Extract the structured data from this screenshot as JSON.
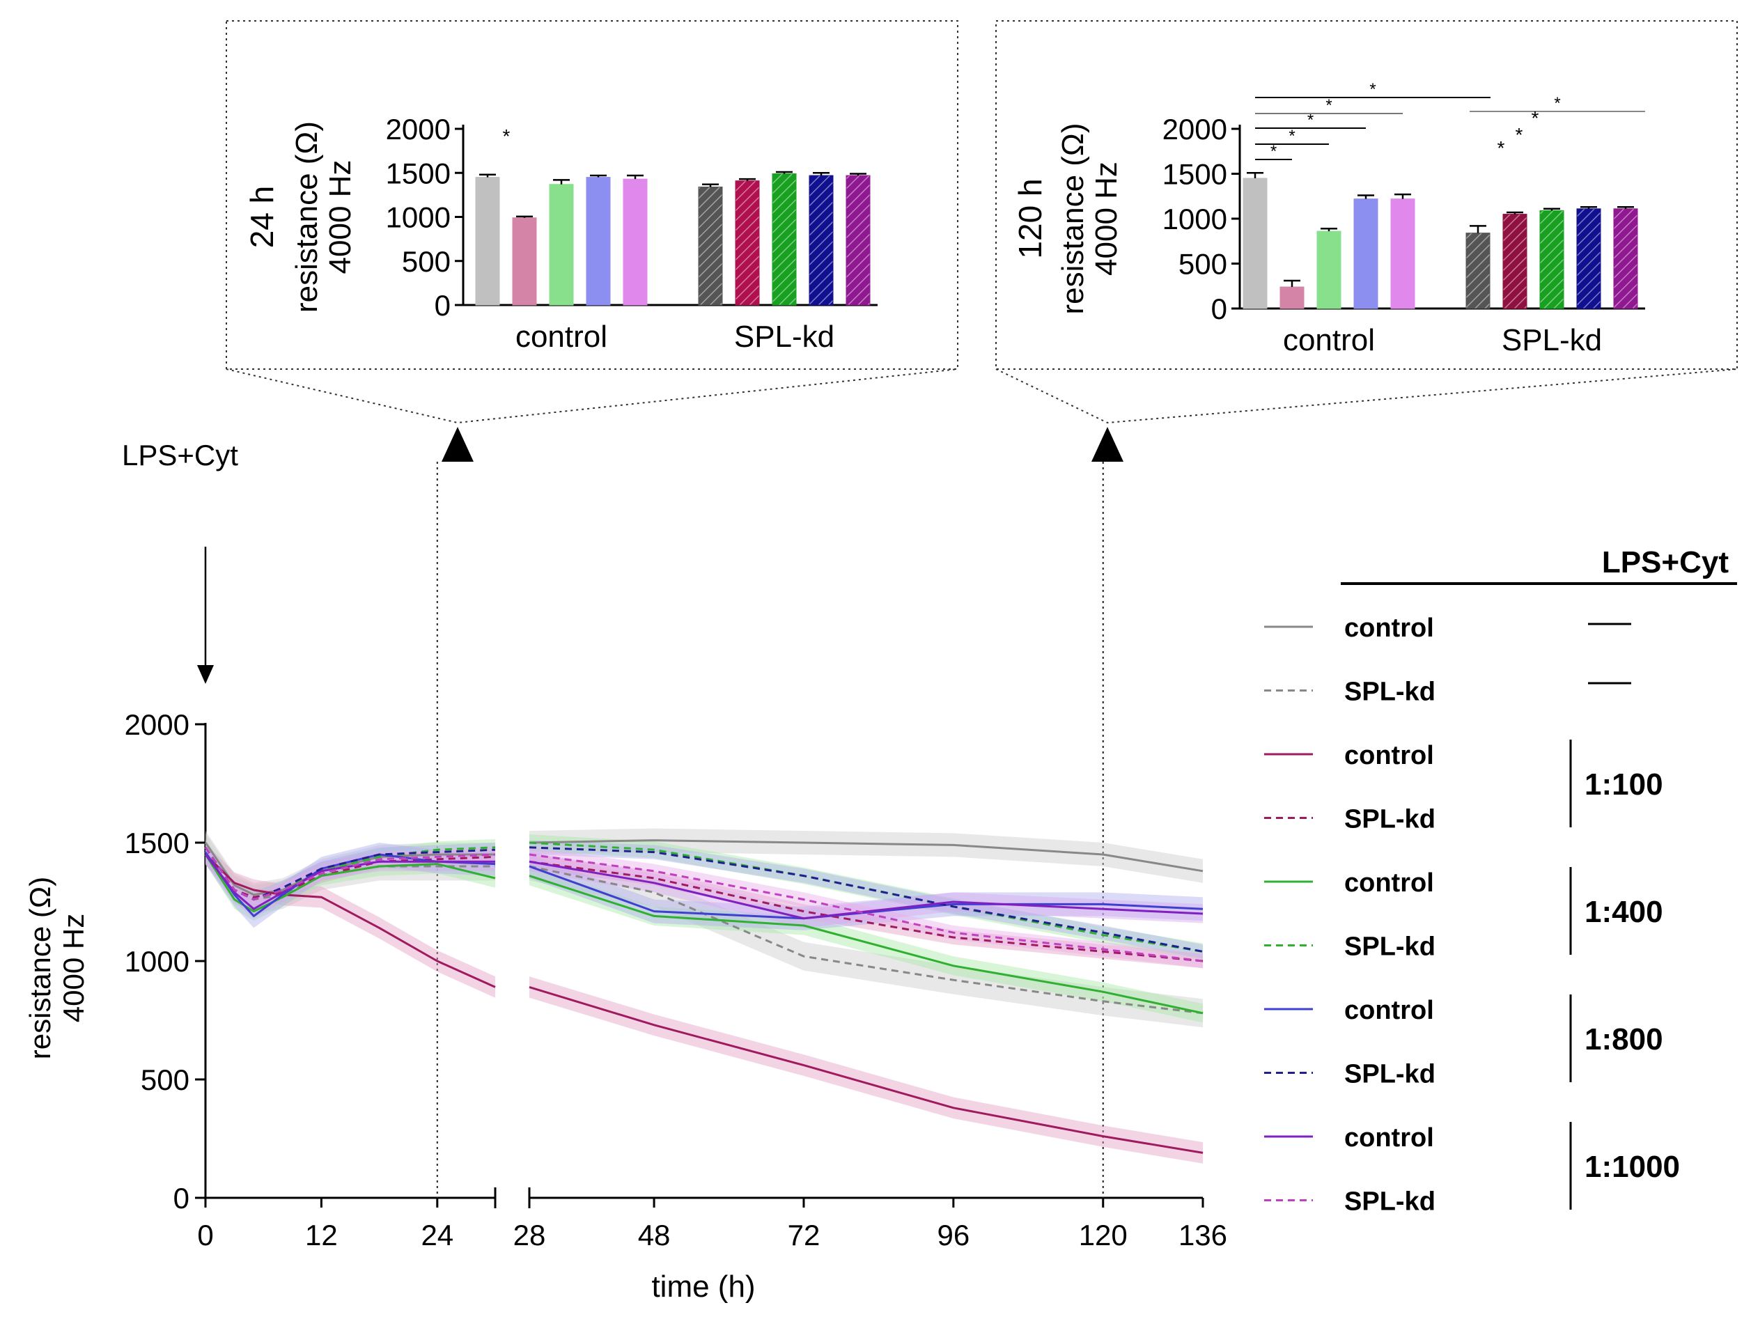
{
  "chart_data": [
    {
      "type": "bar",
      "title": "24 h",
      "ylabel": [
        "resistance (Ω)",
        "4000 Hz"
      ],
      "ylim": [
        0,
        2000
      ],
      "yticks": [
        "0",
        "500",
        "1000",
        "1500",
        "2000"
      ],
      "groups": [
        "control",
        "SPL-kd"
      ],
      "series": [
        {
          "name": "control",
          "group": "control",
          "color": "#c0c0c0",
          "hatched": false,
          "value": 1450,
          "error": 30
        },
        {
          "name": "1:100",
          "group": "control",
          "color": "#d484a6",
          "hatched": false,
          "value": 990,
          "error": 15
        },
        {
          "name": "1:400",
          "group": "control",
          "color": "#88e08c",
          "hatched": false,
          "value": 1370,
          "error": 50
        },
        {
          "name": "1:800",
          "group": "control",
          "color": "#8c8ef0",
          "hatched": false,
          "value": 1450,
          "error": 20
        },
        {
          "name": "1:1000",
          "group": "control",
          "color": "#e088ec",
          "hatched": false,
          "value": 1430,
          "error": 40
        },
        {
          "name": "control",
          "group": "SPL-kd",
          "color": "#555555",
          "hatched": true,
          "value": 1340,
          "error": 30
        },
        {
          "name": "1:100",
          "group": "SPL-kd",
          "color": "#b01050",
          "hatched": true,
          "value": 1410,
          "error": 20
        },
        {
          "name": "1:400",
          "group": "SPL-kd",
          "color": "#18a020",
          "hatched": true,
          "value": 1490,
          "error": 20
        },
        {
          "name": "1:800",
          "group": "SPL-kd",
          "color": "#101090",
          "hatched": true,
          "value": 1470,
          "error": 30
        },
        {
          "name": "1:1000",
          "group": "SPL-kd",
          "color": "#901890",
          "hatched": true,
          "value": 1470,
          "error": 20
        }
      ],
      "annotations": [
        "*"
      ]
    },
    {
      "type": "bar",
      "title": "120 h",
      "ylabel": [
        "resistance (Ω)",
        "4000 Hz"
      ],
      "ylim": [
        0,
        2000
      ],
      "yticks": [
        "0",
        "500",
        "1000",
        "1500",
        "2000"
      ],
      "groups": [
        "control",
        "SPL-kd"
      ],
      "series": [
        {
          "name": "control",
          "group": "control",
          "color": "#c0c0c0",
          "hatched": false,
          "value": 1450,
          "error": 60
        },
        {
          "name": "1:100",
          "group": "control",
          "color": "#d484a6",
          "hatched": false,
          "value": 240,
          "error": 70
        },
        {
          "name": "1:400",
          "group": "control",
          "color": "#88e08c",
          "hatched": false,
          "value": 860,
          "error": 30
        },
        {
          "name": "1:800",
          "group": "control",
          "color": "#8c8ef0",
          "hatched": false,
          "value": 1220,
          "error": 40
        },
        {
          "name": "1:1000",
          "group": "control",
          "color": "#e088ec",
          "hatched": false,
          "value": 1220,
          "error": 50
        },
        {
          "name": "control",
          "group": "SPL-kd",
          "color": "#555555",
          "hatched": true,
          "value": 840,
          "error": 80
        },
        {
          "name": "1:100",
          "group": "SPL-kd",
          "color": "#901040",
          "hatched": true,
          "value": 1050,
          "error": 20
        },
        {
          "name": "1:400",
          "group": "SPL-kd",
          "color": "#18a020",
          "hatched": true,
          "value": 1090,
          "error": 20
        },
        {
          "name": "1:800",
          "group": "SPL-kd",
          "color": "#101090",
          "hatched": true,
          "value": 1110,
          "error": 20
        },
        {
          "name": "1:1000",
          "group": "SPL-kd",
          "color": "#901890",
          "hatched": true,
          "value": 1110,
          "error": 20
        }
      ],
      "annotations": [
        "*",
        "*",
        "*",
        "*",
        "*",
        "*",
        "*",
        "*",
        "*"
      ]
    },
    {
      "type": "line",
      "ylabel": [
        "resistance (Ω)",
        "4000 Hz"
      ],
      "xlabel": "time (h)",
      "ylim": [
        0,
        2000
      ],
      "xlim": [
        0,
        136
      ],
      "axis_break": [
        30,
        28
      ],
      "yticks": [
        "0",
        "500",
        "1000",
        "1500",
        "2000"
      ],
      "xticks": [
        {
          "value": 0,
          "label": "0"
        },
        {
          "value": 12,
          "label": "12"
        },
        {
          "value": 24,
          "label": "24"
        },
        {
          "value": 28,
          "label": "28"
        },
        {
          "value": 48,
          "label": "48"
        },
        {
          "value": 72,
          "label": "72"
        },
        {
          "value": 96,
          "label": "96"
        },
        {
          "value": 120,
          "label": "120"
        },
        {
          "value": 136,
          "label": "136"
        }
      ],
      "treatment_label": "LPS+Cyt",
      "markers": [
        24,
        120
      ],
      "series": [
        {
          "name": "control",
          "color": "#888888",
          "band": "#cccccc",
          "dashed": false,
          "x": [
            0,
            3,
            5,
            8,
            12,
            18,
            24,
            30,
            28,
            48,
            72,
            96,
            120,
            136
          ],
          "y": [
            1500,
            1320,
            1280,
            1300,
            1380,
            1440,
            1450,
            1450,
            1500,
            1510,
            1500,
            1490,
            1450,
            1380
          ],
          "err": 50
        },
        {
          "name": "SPL-kd",
          "color": "#888888",
          "band": "#cccccc",
          "dashed": true,
          "x": [
            0,
            3,
            5,
            8,
            12,
            18,
            24,
            30,
            28,
            48,
            72,
            96,
            120,
            136
          ],
          "y": [
            1480,
            1300,
            1260,
            1280,
            1360,
            1400,
            1400,
            1400,
            1400,
            1290,
            1020,
            920,
            830,
            780
          ],
          "err": 60
        },
        {
          "name": "control",
          "color": "#a01a60",
          "band": "#e4a0c4",
          "dashed": false,
          "x": [
            0,
            3,
            5,
            8,
            12,
            18,
            24,
            30,
            28,
            48,
            72,
            96,
            120,
            136
          ],
          "y": [
            1450,
            1330,
            1300,
            1280,
            1270,
            1140,
            1000,
            890,
            890,
            730,
            560,
            380,
            260,
            190
          ],
          "err": 45
        },
        {
          "name": "SPL-kd",
          "color": "#a01a60",
          "band": "#e4a0c4",
          "dashed": true,
          "x": [
            0,
            3,
            5,
            8,
            12,
            18,
            24,
            30,
            28,
            48,
            72,
            96,
            120,
            136
          ],
          "y": [
            1480,
            1300,
            1270,
            1290,
            1360,
            1420,
            1430,
            1440,
            1420,
            1350,
            1210,
            1100,
            1040,
            1000
          ],
          "err": 30
        },
        {
          "name": "control",
          "color": "#30b030",
          "band": "#a8e8a8",
          "dashed": false,
          "x": [
            0,
            3,
            5,
            8,
            12,
            18,
            24,
            30,
            28,
            48,
            72,
            96,
            120,
            136
          ],
          "y": [
            1450,
            1260,
            1210,
            1270,
            1360,
            1400,
            1410,
            1350,
            1360,
            1190,
            1150,
            980,
            870,
            780
          ],
          "err": 40
        },
        {
          "name": "SPL-kd",
          "color": "#30b030",
          "band": "#a8e8a8",
          "dashed": true,
          "x": [
            0,
            3,
            5,
            8,
            12,
            18,
            24,
            30,
            28,
            48,
            72,
            96,
            120,
            136
          ],
          "y": [
            1480,
            1300,
            1260,
            1300,
            1380,
            1440,
            1470,
            1480,
            1500,
            1470,
            1360,
            1230,
            1110,
            1040
          ],
          "err": 35
        },
        {
          "name": "control",
          "color": "#4040d0",
          "band": "#b0b0f0",
          "dashed": false,
          "x": [
            0,
            3,
            5,
            8,
            12,
            18,
            24,
            30,
            28,
            48,
            72,
            96,
            120,
            136
          ],
          "y": [
            1460,
            1280,
            1190,
            1280,
            1390,
            1450,
            1420,
            1410,
            1400,
            1210,
            1180,
            1240,
            1240,
            1220
          ],
          "err": 50
        },
        {
          "name": "SPL-kd",
          "color": "#202090",
          "band": "#b0b0f0",
          "dashed": true,
          "x": [
            0,
            3,
            5,
            8,
            12,
            18,
            24,
            30,
            28,
            48,
            72,
            96,
            120,
            136
          ],
          "y": [
            1480,
            1300,
            1260,
            1310,
            1390,
            1450,
            1460,
            1470,
            1480,
            1460,
            1360,
            1230,
            1120,
            1040
          ],
          "err": 30
        },
        {
          "name": "control",
          "color": "#8020c0",
          "band": "#d8a8f0",
          "dashed": false,
          "x": [
            0,
            3,
            5,
            8,
            12,
            18,
            24,
            30,
            28,
            48,
            72,
            96,
            120,
            136
          ],
          "y": [
            1450,
            1290,
            1220,
            1290,
            1380,
            1420,
            1420,
            1420,
            1420,
            1330,
            1180,
            1250,
            1220,
            1200
          ],
          "err": 40
        },
        {
          "name": "SPL-kd",
          "color": "#c040c0",
          "band": "#e8b0e8",
          "dashed": true,
          "x": [
            0,
            3,
            5,
            8,
            12,
            18,
            24,
            30,
            28,
            48,
            72,
            96,
            120,
            136
          ],
          "y": [
            1480,
            1300,
            1260,
            1300,
            1370,
            1430,
            1440,
            1450,
            1450,
            1380,
            1260,
            1120,
            1050,
            1000
          ],
          "err": 30
        }
      ]
    }
  ],
  "legend": {
    "header": "LPS+Cyt",
    "rows": [
      {
        "label": "control",
        "color": "#888888",
        "dashed": false
      },
      {
        "label": "SPL-kd",
        "color": "#888888",
        "dashed": true
      },
      {
        "label": "control",
        "color": "#a01a60",
        "dashed": false
      },
      {
        "label": "SPL-kd",
        "color": "#a01a60",
        "dashed": true
      },
      {
        "label": "control",
        "color": "#30b030",
        "dashed": false
      },
      {
        "label": "SPL-kd",
        "color": "#30b030",
        "dashed": true
      },
      {
        "label": "control",
        "color": "#4040d0",
        "dashed": false
      },
      {
        "label": "SPL-kd",
        "color": "#202090",
        "dashed": true
      },
      {
        "label": "control",
        "color": "#8020c0",
        "dashed": false
      },
      {
        "label": "SPL-kd",
        "color": "#c040c0",
        "dashed": true
      }
    ],
    "dilutions": [
      "1:100",
      "1:400",
      "1:800",
      "1:1000"
    ]
  }
}
